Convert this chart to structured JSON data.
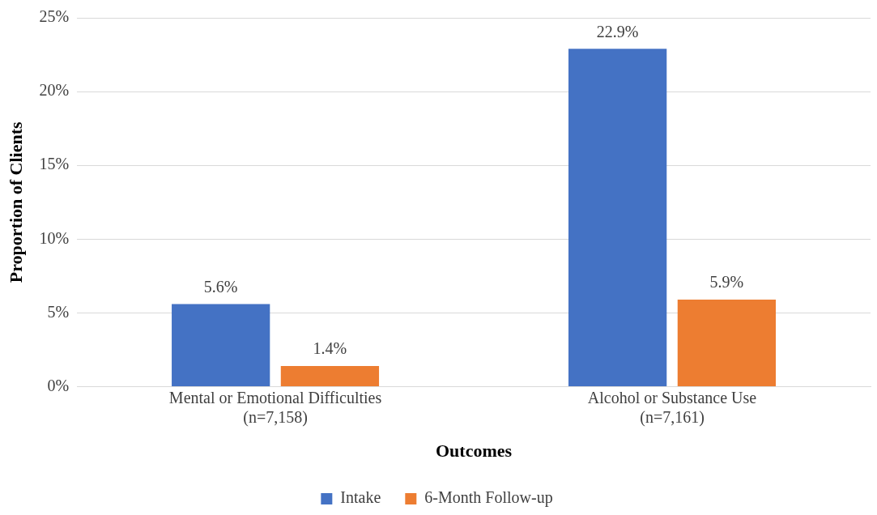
{
  "chart_data": {
    "type": "bar",
    "xlabel": "Outcomes",
    "ylabel": "Proportion of Clients",
    "categories": [
      "Mental or Emotional Difficulties\n(n=7,158)",
      "Alcohol or Substance Use\n(n=7,161)"
    ],
    "series": [
      {
        "name": "Intake",
        "color": "#4472c4",
        "values": [
          5.6,
          22.9
        ]
      },
      {
        "name": "6-Month Follow-up",
        "color": "#ed7d31",
        "values": [
          1.4,
          5.9
        ]
      }
    ],
    "value_labels": [
      [
        "5.6%",
        "22.9%"
      ],
      [
        "1.4%",
        "5.9%"
      ]
    ],
    "ylim": [
      0,
      25
    ],
    "yticks": [
      {
        "value": 0,
        "label": "0%"
      },
      {
        "value": 5,
        "label": "5%"
      },
      {
        "value": 10,
        "label": "10%"
      },
      {
        "value": 15,
        "label": "15%"
      },
      {
        "value": 20,
        "label": "20%"
      },
      {
        "value": 25,
        "label": "25%"
      }
    ],
    "grid": "y",
    "legend": "bottom"
  }
}
